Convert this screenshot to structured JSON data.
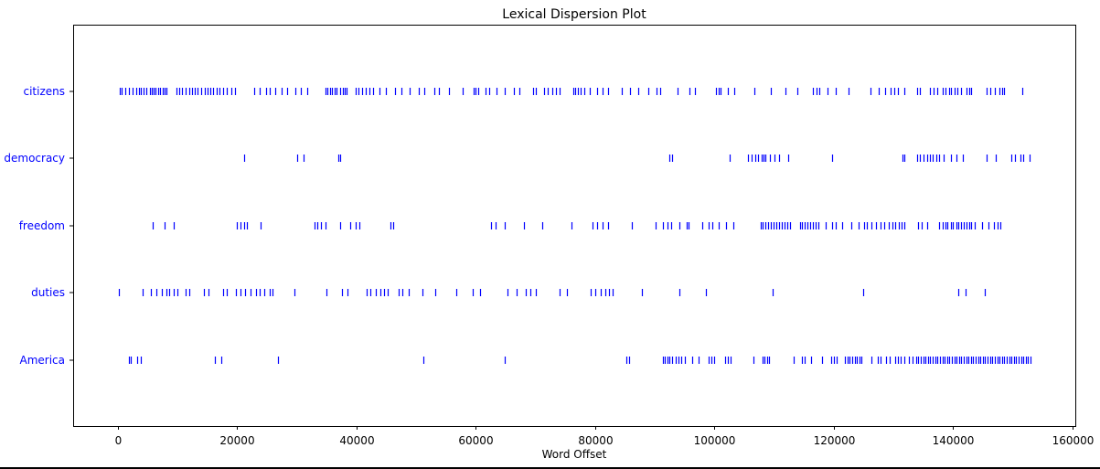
{
  "chart_data": {
    "type": "scatter",
    "title": "Lexical Dispersion Plot",
    "xlabel": "Word Offset",
    "ylabel": "",
    "xlim": [
      -7500,
      160500
    ],
    "x_ticks": [
      0,
      20000,
      40000,
      60000,
      80000,
      100000,
      120000,
      140000,
      160000
    ],
    "grid": false,
    "marker": "|",
    "marker_color": "#0000ff",
    "label_color": "#0000ff",
    "words": [
      "citizens",
      "democracy",
      "freedom",
      "duties",
      "America"
    ],
    "series": [
      {
        "name": "citizens",
        "x": [
          300,
          700,
          1300,
          1900,
          2500,
          3000,
          3500,
          3900,
          4300,
          4800,
          5300,
          5700,
          6000,
          6300,
          6700,
          7100,
          7500,
          7900,
          8200,
          9800,
          10300,
          10800,
          11400,
          12000,
          12400,
          12900,
          13400,
          13900,
          14500,
          15000,
          15500,
          16000,
          16600,
          17100,
          17600,
          18200,
          19000,
          19600,
          22800,
          23800,
          24800,
          25500,
          26400,
          27400,
          28300,
          29800,
          30600,
          31800,
          34800,
          35100,
          35500,
          35900,
          36300,
          36700,
          37300,
          37700,
          38000,
          38400,
          39800,
          40300,
          40900,
          41500,
          42100,
          42800,
          43800,
          44900,
          46500,
          47600,
          48900,
          50500,
          51300,
          53000,
          53800,
          55500,
          57800,
          59600,
          60000,
          60400,
          61700,
          62300,
          63400,
          64800,
          66400,
          67300,
          69600,
          70000,
          71500,
          72100,
          72800,
          73500,
          74100,
          76300,
          76700,
          77100,
          77600,
          78200,
          79100,
          80400,
          81300,
          82200,
          84500,
          85800,
          87300,
          88900,
          90300,
          90900,
          93800,
          95800,
          96700,
          100300,
          100700,
          101100,
          102300,
          103400,
          106700,
          109400,
          111900,
          113900,
          116500,
          117100,
          117600,
          118900,
          120300,
          122500,
          126100,
          127600,
          128600,
          129600,
          130200,
          130800,
          131900,
          134000,
          134500,
          136100,
          136800,
          137300,
          138300,
          138800,
          139300,
          139700,
          140300,
          140800,
          141300,
          142200,
          142700,
          143000,
          145700,
          146200,
          147000,
          147800,
          148200,
          148600,
          151600
        ]
      },
      {
        "name": "democracy",
        "x": [
          21200,
          30100,
          31100,
          37000,
          37300,
          92400,
          92900,
          102500,
          105700,
          106200,
          106800,
          107300,
          107900,
          108300,
          108600,
          109300,
          110000,
          110900,
          112300,
          119700,
          131500,
          131900,
          134000,
          134400,
          135000,
          135600,
          136100,
          136600,
          137200,
          137700,
          138500,
          139600,
          140500,
          141700,
          145700,
          147100,
          149700,
          150400,
          151300,
          151800,
          152800
        ]
      },
      {
        "name": "freedom",
        "x": [
          5800,
          7900,
          9400,
          20000,
          20500,
          21100,
          21700,
          23900,
          32900,
          33500,
          34000,
          34800,
          37300,
          38900,
          39800,
          40500,
          45700,
          46200,
          62500,
          63300,
          64900,
          68100,
          71200,
          76000,
          79500,
          80400,
          81300,
          82200,
          86100,
          90200,
          91400,
          92100,
          92700,
          94100,
          95300,
          95700,
          98000,
          99100,
          99700,
          100700,
          101900,
          103200,
          107700,
          108100,
          108600,
          109000,
          109500,
          109900,
          110400,
          110800,
          111300,
          111800,
          112200,
          112700,
          114300,
          114700,
          115100,
          115600,
          116000,
          116500,
          117000,
          117500,
          118700,
          119800,
          120400,
          121400,
          123000,
          124200,
          125100,
          125600,
          126300,
          127100,
          127800,
          128500,
          129200,
          129800,
          130300,
          130900,
          131400,
          131900,
          134200,
          134700,
          135700,
          137700,
          138200,
          138700,
          139100,
          139600,
          140000,
          140500,
          140900,
          141400,
          141800,
          142300,
          142700,
          143100,
          143600,
          144800,
          146000,
          146900,
          147400,
          148000
        ]
      },
      {
        "name": "duties",
        "x": [
          200,
          4200,
          5600,
          6400,
          7400,
          8100,
          8600,
          9300,
          10000,
          11400,
          11900,
          14400,
          15200,
          17600,
          18300,
          19800,
          20500,
          21300,
          22300,
          23200,
          23800,
          24500,
          25400,
          25900,
          29600,
          35000,
          37600,
          38500,
          41700,
          42300,
          43300,
          44000,
          44600,
          45300,
          47000,
          47700,
          48700,
          51100,
          53200,
          56700,
          59500,
          60700,
          65300,
          66900,
          68300,
          69100,
          70100,
          74100,
          75200,
          79200,
          80100,
          80900,
          81700,
          82400,
          83000,
          87900,
          94200,
          98600,
          109700,
          124900,
          140900,
          142100,
          145300
        ]
      },
      {
        "name": "America",
        "x": [
          1800,
          2100,
          3300,
          3900,
          16300,
          17400,
          26800,
          51200,
          64800,
          85300,
          85700,
          91300,
          91700,
          92100,
          92500,
          92900,
          93500,
          94000,
          94500,
          95000,
          96300,
          97300,
          99100,
          99500,
          100000,
          101800,
          102200,
          102700,
          106600,
          108000,
          108400,
          108800,
          109200,
          113300,
          114700,
          115200,
          116200,
          118100,
          119600,
          120000,
          120500,
          121900,
          122300,
          122700,
          123100,
          123500,
          123900,
          124300,
          124700,
          126300,
          127400,
          127800,
          128800,
          129400,
          130300,
          130700,
          131200,
          131800,
          132600,
          133200,
          133800,
          134200,
          134600,
          135000,
          135400,
          135800,
          136200,
          136600,
          137000,
          137400,
          137800,
          138200,
          138600,
          139000,
          139400,
          139800,
          140200,
          140600,
          141000,
          141400,
          141800,
          142200,
          142600,
          143000,
          143400,
          143800,
          144200,
          144600,
          145000,
          145400,
          145800,
          146200,
          146600,
          147000,
          147400,
          147800,
          148200,
          148600,
          149000,
          149400,
          149800,
          150200,
          150600,
          151000,
          151400,
          151800,
          152200,
          152600,
          153000
        ]
      }
    ]
  }
}
